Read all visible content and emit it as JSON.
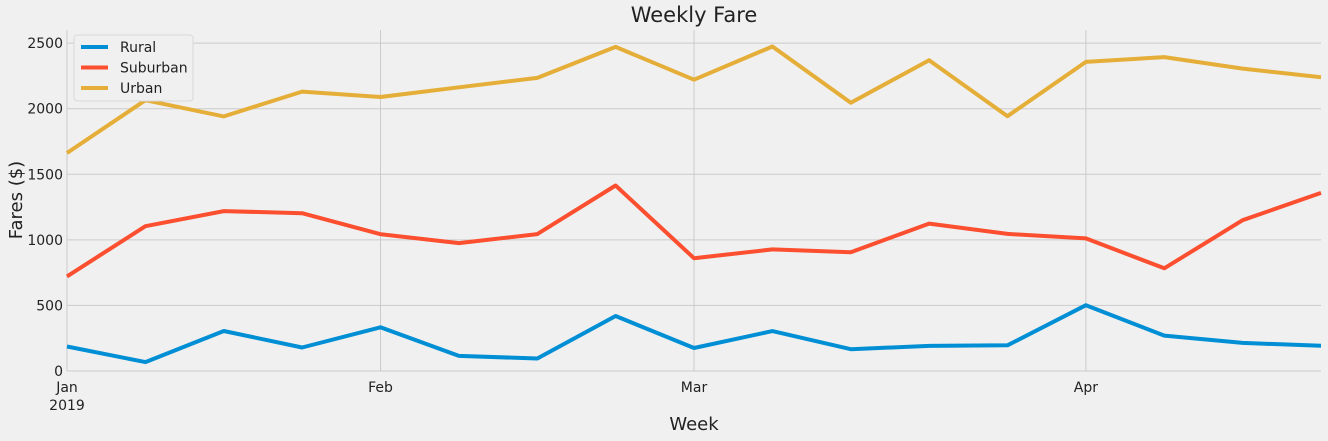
{
  "chart_data": {
    "type": "line",
    "title": "Weekly Fare",
    "xlabel": "Week",
    "ylabel": "Fares ($)",
    "x": [
      "2019-01-06",
      "2019-01-13",
      "2019-01-20",
      "2019-01-27",
      "2019-02-03",
      "2019-02-10",
      "2019-02-17",
      "2019-02-24",
      "2019-03-03",
      "2019-03-10",
      "2019-03-17",
      "2019-03-24",
      "2019-03-31",
      "2019-04-07",
      "2019-04-14",
      "2019-04-21",
      "2019-04-28"
    ],
    "xlim": [
      "2019-01-06",
      "2019-04-28"
    ],
    "x_ticks": [
      {
        "date": "2019-01-06",
        "label": "Jan",
        "sublabel": "2019"
      },
      {
        "date": "2019-02-03",
        "label": "Feb",
        "sublabel": ""
      },
      {
        "date": "2019-03-03",
        "label": "Mar",
        "sublabel": ""
      },
      {
        "date": "2019-04-07",
        "label": "Apr",
        "sublabel": ""
      }
    ],
    "ylim": [
      0,
      2600
    ],
    "y_ticks": [
      0,
      500,
      1000,
      1500,
      2000,
      2500
    ],
    "grid": true,
    "legend_position": "top-left",
    "series": [
      {
        "name": "Rural",
        "color": "#008fd5",
        "values": [
          187,
          68,
          305,
          179,
          333,
          115,
          95,
          419,
          175,
          304,
          166,
          191,
          196,
          502,
          270,
          214,
          192
        ]
      },
      {
        "name": "Suburban",
        "color": "#fc4f30",
        "values": [
          721,
          1104,
          1219,
          1203,
          1043,
          975,
          1044,
          1414,
          860,
          927,
          906,
          1124,
          1045,
          1011,
          783,
          1150,
          1358
        ]
      },
      {
        "name": "Urban",
        "color": "#e5ae38",
        "values": [
          1662,
          2065,
          1941,
          2130,
          2089,
          2163,
          2235,
          2471,
          2221,
          2474,
          2046,
          2370,
          1943,
          2357,
          2393,
          2306,
          2239
        ]
      }
    ]
  }
}
